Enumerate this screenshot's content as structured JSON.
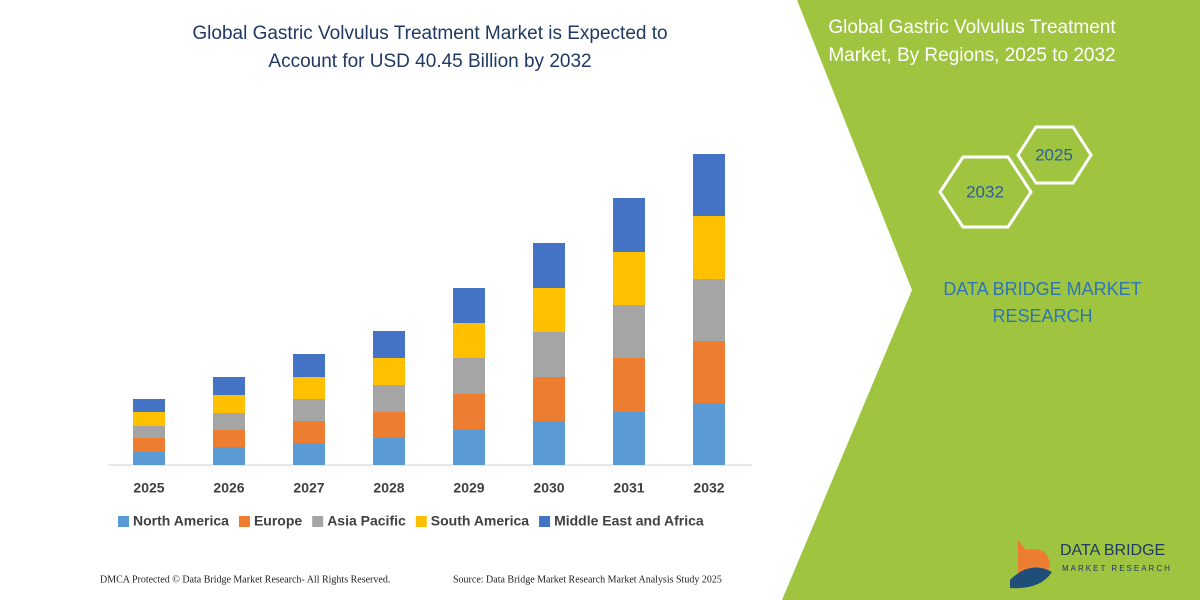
{
  "chart_data": {
    "type": "bar",
    "stacked": true,
    "title": "Global Gastric Volvulus Treatment Market is Expected to Account for USD 40.45 Billion by 2032",
    "categories": [
      "2025",
      "2026",
      "2027",
      "2028",
      "2029",
      "2030",
      "2031",
      "2032"
    ],
    "series": [
      {
        "name": "North America",
        "color": "#5b9bd5",
        "values": [
          13,
          18,
          22,
          27,
          35,
          44,
          53,
          62
        ]
      },
      {
        "name": "Europe",
        "color": "#ed7d31",
        "values": [
          14,
          17,
          22,
          26,
          36,
          44,
          54,
          62
        ]
      },
      {
        "name": "Asia Pacific",
        "color": "#a5a5a5",
        "values": [
          12,
          17,
          22,
          27,
          36,
          45,
          53,
          62
        ]
      },
      {
        "name": "South America",
        "color": "#ffc000",
        "values": [
          14,
          18,
          22,
          27,
          35,
          44,
          53,
          63
        ]
      },
      {
        "name": "Middle East and Africa",
        "color": "#4472c4",
        "values": [
          13,
          18,
          23,
          27,
          35,
          45,
          54,
          62
        ]
      }
    ],
    "ylim": [
      0,
      320
    ],
    "legend": "bottom"
  },
  "side_panel": {
    "title": "Global Gastric Volvulus Treatment Market, By Regions, 2025 to 2032",
    "hexagons": [
      "2032",
      "2025"
    ],
    "brand": "DATA BRIDGE MARKET RESEARCH"
  },
  "footer": {
    "copyright": "DMCA Protected © Data Bridge Market Research- All Rights Reserved.",
    "source": "Source: Data Bridge Market Research  Market Analysis Study 2025"
  },
  "logo": {
    "name": "DATA BRIDGE",
    "tagline": "MARKET RESEARCH"
  }
}
